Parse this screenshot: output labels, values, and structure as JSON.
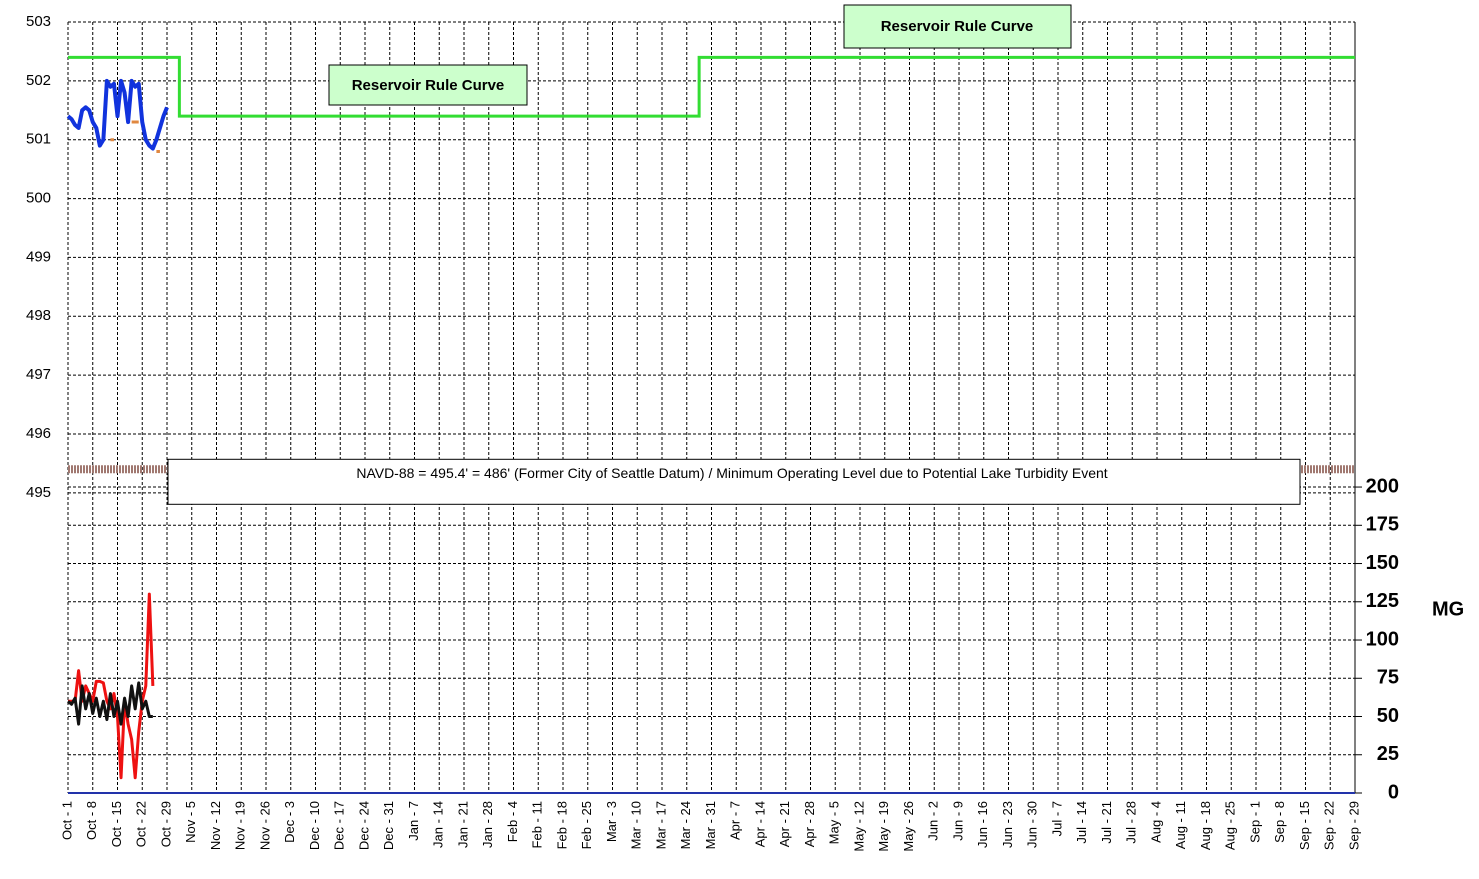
{
  "chart_data": {
    "type": "line",
    "categories": [
      "Oct - 1",
      "Oct - 8",
      "Oct - 15",
      "Oct - 22",
      "Oct - 29",
      "Nov - 5",
      "Nov - 12",
      "Nov - 19",
      "Nov - 26",
      "Dec - 3",
      "Dec - 10",
      "Dec - 17",
      "Dec - 24",
      "Dec - 31",
      "Jan - 7",
      "Jan - 14",
      "Jan - 21",
      "Jan - 28",
      "Feb - 4",
      "Feb - 11",
      "Feb - 18",
      "Feb - 25",
      "Mar - 3",
      "Mar - 10",
      "Mar - 17",
      "Mar - 24",
      "Mar - 31",
      "Apr - 7",
      "Apr - 14",
      "Apr - 21",
      "Apr - 28",
      "May - 5",
      "May - 12",
      "May - 19",
      "May - 26",
      "Jun - 2",
      "Jun - 9",
      "Jun - 16",
      "Jun - 23",
      "Jun - 30",
      "Jul - 7",
      "Jul - 14",
      "Jul - 21",
      "Jul - 28",
      "Aug - 4",
      "Aug - 11",
      "Aug - 18",
      "Aug - 25",
      "Sep - 1",
      "Sep - 8",
      "Sep - 15",
      "Sep - 22",
      "Sep - 29"
    ],
    "ylim": [
      489.9,
      503
    ],
    "yticks": [
      495,
      496,
      497,
      498,
      499,
      500,
      501,
      502,
      503
    ],
    "y2lim": [
      0,
      504
    ],
    "y2ticks": [
      0,
      25,
      50,
      75,
      100,
      125,
      150,
      175,
      200
    ],
    "y2_label": "MG",
    "grid": true,
    "rule_curve": {
      "name": "Reservoir Rule Curve",
      "color": "#33dd33",
      "values": [
        502.4,
        502.4,
        502.4,
        502.4,
        502.4,
        501.4,
        501.4,
        501.4,
        501.4,
        501.4,
        501.4,
        501.4,
        501.4,
        501.4,
        501.4,
        501.4,
        501.4,
        501.4,
        501.4,
        501.4,
        501.4,
        501.4,
        501.4,
        501.4,
        501.4,
        501.4,
        502.4,
        502.4,
        502.4,
        502.4,
        502.4,
        502.4,
        502.4,
        502.4,
        502.4,
        502.4,
        502.4,
        502.4,
        502.4,
        502.4,
        502.4,
        502.4,
        502.4,
        502.4,
        502.4,
        502.4,
        502.4,
        502.4,
        502.4,
        502.4,
        502.4,
        502.4,
        502.4
      ]
    },
    "rule_labels": [
      "Reservoir Rule Curve",
      "Reservoir Rule Curve"
    ],
    "reference": {
      "value": 495.4,
      "label": "NAVD-88 = 495.4' = 486' (Former City of Seattle Datum) / Minimum Operating Level due to Potential Lake Turbidity Event",
      "color": "#a07870"
    },
    "daily_series": [
      {
        "color": "#1133dd",
        "axis": "y",
        "values": [
          501.4,
          501.35,
          501.25,
          501.2,
          501.5,
          501.55,
          501.5,
          501.3,
          501.2,
          500.9,
          501.0,
          502.0,
          501.9,
          501.95,
          501.4,
          502.0,
          501.8,
          501.3,
          502.0,
          501.9,
          501.95,
          501.3,
          501.0,
          500.9,
          500.85,
          501.0,
          501.2,
          501.4,
          501.55
        ]
      },
      {
        "color": "#e08840",
        "axis": "y",
        "values": [
          null,
          null,
          null,
          null,
          null,
          null,
          null,
          null,
          null,
          null,
          null,
          null,
          501.0,
          501.0,
          null,
          null,
          null,
          null,
          501.3,
          501.3,
          501.3,
          null,
          null,
          null,
          null,
          500.8,
          500.8,
          null,
          null
        ]
      },
      {
        "color": "#ee1111",
        "axis": "y2",
        "values": [
          60,
          60,
          60,
          80,
          60,
          70,
          65,
          60,
          73,
          73,
          72,
          60,
          55,
          65,
          50,
          10,
          60,
          45,
          35,
          10,
          40,
          60,
          70,
          130,
          70
        ]
      },
      {
        "color": "#111111",
        "axis": "y2",
        "values": [
          60,
          58,
          62,
          45,
          70,
          55,
          65,
          52,
          62,
          50,
          60,
          48,
          65,
          50,
          60,
          45,
          62,
          50,
          70,
          55,
          72,
          55,
          60,
          50,
          50
        ]
      }
    ]
  }
}
